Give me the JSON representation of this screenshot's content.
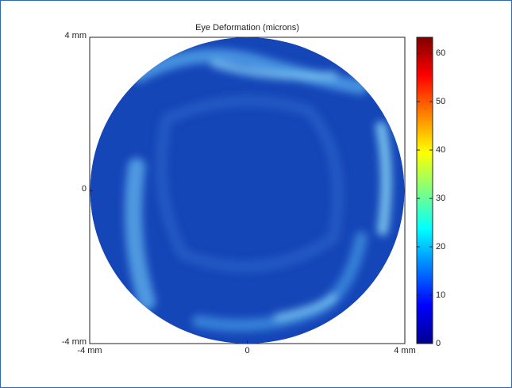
{
  "chart_data": {
    "type": "heatmap",
    "title": "Eye Deformation (microns)",
    "xlim": [
      -4,
      4
    ],
    "ylim": [
      -4,
      4
    ],
    "xticks": [
      {
        "value": -4,
        "label": "-4 mm"
      },
      0,
      {
        "value": 4,
        "label": "4 mm"
      }
    ],
    "yticks": [
      {
        "value": -4,
        "label": "-4 mm"
      },
      0,
      {
        "value": 4,
        "label": "4 mm"
      }
    ],
    "colormap": "jet",
    "clim": [
      0,
      63.3
    ],
    "cticks": [
      0,
      10,
      20,
      30,
      40,
      50,
      60
    ]
  }
}
